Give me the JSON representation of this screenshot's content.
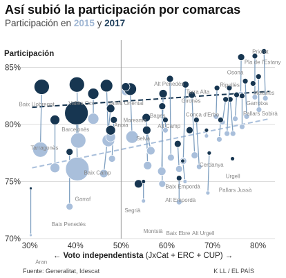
{
  "header": {
    "title": "Así subió la participación por comarcas",
    "subtitle_prefix": "Participación en",
    "year_a": "2015",
    "year_join": "y",
    "year_b": "2017"
  },
  "axis_y_title": "Participación",
  "axis_x_title": {
    "bold": "Voto independentista",
    "rest": "(JxCat + ERC + CUP)",
    "arrow_left": "←",
    "arrow_right": "→"
  },
  "footer": {
    "source": "Fuente: Generalitat, Idescat",
    "credit": "K LL / EL PAÍS"
  },
  "colors": {
    "year_2015": "#a9bfdb",
    "year_2017": "#173651",
    "connector": "#7e9fc0",
    "trend_2015": "#a9bfdb",
    "trend_2017": "#173651",
    "grid": "#dddddd",
    "label": "#888888"
  },
  "chart_data": {
    "type": "scatter",
    "x_axis": {
      "min": 28,
      "max": 84,
      "ticks": [
        30,
        40,
        50,
        60,
        70,
        80
      ],
      "unit": "%"
    },
    "y_axis": {
      "min": 70,
      "max": 88,
      "ticks": [
        70,
        75,
        80,
        85
      ],
      "unit": "%"
    },
    "reference_line_x": 50,
    "grid": "horizontal",
    "series_names": [
      "2015",
      "2017"
    ],
    "trendlines": {
      "2015": {
        "from": [
          30.5,
          76.2
        ],
        "to": [
          82.5,
          80.5
        ]
      },
      "2017": {
        "from": [
          30.5,
          81.5
        ],
        "to": [
          82.5,
          82.9
        ]
      }
    },
    "labels": [
      {
        "text": "Priorat",
        "x": 80.5,
        "y": 86.2
      },
      {
        "text": "Pla de l'Estany",
        "x": 81,
        "y": 85.3
      },
      {
        "text": "Osona",
        "x": 75,
        "y": 84.4
      },
      {
        "text": "Moianès",
        "x": 81.3,
        "y": 82.6
      },
      {
        "text": "Ripollès",
        "x": 73.8,
        "y": 83.3
      },
      {
        "text": "Garrotxa",
        "x": 79.8,
        "y": 81.7
      },
      {
        "text": "Pallars Sobirà",
        "x": 80.5,
        "y": 80.8
      },
      {
        "text": "Terra Alta",
        "x": 66.8,
        "y": 82.7
      },
      {
        "text": "Alt Penedès",
        "x": 60.5,
        "y": 83.4
      },
      {
        "text": "Gironès",
        "x": 65.3,
        "y": 81.9
      },
      {
        "text": "Conca d'Erbo",
        "x": 67.8,
        "y": 80.7
      },
      {
        "text": "Bages",
        "x": 58,
        "y": 80.6
      },
      {
        "text": "Alt Camp",
        "x": 60.5,
        "y": 79.7
      },
      {
        "text": "Maresme",
        "x": 53,
        "y": 80.2
      },
      {
        "text": "Anoia",
        "x": 50,
        "y": 79.8
      },
      {
        "text": "Selva",
        "x": 54.8,
        "y": 78.6
      },
      {
        "text": "Baix Llobregat",
        "x": 31.5,
        "y": 81.6
      },
      {
        "text": "Vallès Occ.",
        "x": 41.5,
        "y": 81.7
      },
      {
        "text": "Vallès Oriental",
        "x": 51,
        "y": 81.7
      },
      {
        "text": "Barcelonès",
        "x": 40,
        "y": 79.4
      },
      {
        "text": "Tarragonès",
        "x": 33.2,
        "y": 77.8
      },
      {
        "text": "Cerdanya",
        "x": 69.8,
        "y": 76.3
      },
      {
        "text": "Urgell",
        "x": 74.5,
        "y": 75.3
      },
      {
        "text": "Baix Camp",
        "x": 44.8,
        "y": 75.6
      },
      {
        "text": "Pallars Jussà",
        "x": 75,
        "y": 74.1
      },
      {
        "text": "Baix Empordà",
        "x": 63.5,
        "y": 74.4
      },
      {
        "text": "Garraf",
        "x": 41.6,
        "y": 73.3
      },
      {
        "text": "Alt Empordà",
        "x": 63,
        "y": 73.2
      },
      {
        "text": "Segrià",
        "x": 52.5,
        "y": 72.3
      },
      {
        "text": "Montsià",
        "x": 57,
        "y": 70.5
      },
      {
        "text": "Alt Urgell",
        "x": 68,
        "y": 70.3
      },
      {
        "text": "Baix Ebre",
        "x": 62.5,
        "y": 70.3
      },
      {
        "text": "Baix Penedès",
        "x": 38.5,
        "y": 71.1
      },
      {
        "text": "Aran",
        "x": 32.5,
        "y": 67.8
      }
    ],
    "points": [
      {
        "x15": 32.3,
        "y15": 77.8,
        "x17": 32.6,
        "y17": 83.3,
        "r15": 11,
        "r17": 11
      },
      {
        "x15": 40.6,
        "y15": 78.6,
        "x17": 40.3,
        "y17": 83.5,
        "r15": 11,
        "r17": 11
      },
      {
        "x15": 40.4,
        "y15": 76.1,
        "x17": 40.2,
        "y17": 81.0,
        "r15": 17,
        "r17": 17
      },
      {
        "x15": 47.2,
        "y15": 78.6,
        "x17": 46.8,
        "y17": 83.4,
        "r15": 9,
        "r17": 9
      },
      {
        "x15": 35.5,
        "y15": 76.2,
        "x17": 35.5,
        "y17": 80.4,
        "r15": 7,
        "r17": 7
      },
      {
        "x15": 43.9,
        "y15": 80.5,
        "x17": 43.9,
        "y17": 82.7,
        "r15": 8,
        "r17": 8
      },
      {
        "x15": 46.2,
        "y15": 75.7,
        "x17": 47.7,
        "y17": 81.4,
        "r15": 6,
        "r17": 6
      },
      {
        "x15": 47.7,
        "y15": 78.9,
        "x17": 47.7,
        "y17": 79.5,
        "r15": 7,
        "r17": 7
      },
      {
        "x15": 52.4,
        "y15": 78.9,
        "x17": 52.0,
        "y17": 83.1,
        "r15": 9,
        "r17": 9
      },
      {
        "x15": 51.0,
        "y15": 82.9,
        "x17": 51.0,
        "y17": 83.3,
        "r15": 6,
        "r17": 6
      },
      {
        "x15": 38.7,
        "y15": 72.8,
        "x17": 38.7,
        "y17": 77.6,
        "r15": 5,
        "r17": 5
      },
      {
        "x15": 48.0,
        "y15": 77.0,
        "x17": 48.4,
        "y17": 80.4,
        "r15": 5,
        "r17": 5
      },
      {
        "x15": 55.8,
        "y15": 76.4,
        "x17": 55.5,
        "y17": 80.6,
        "r15": 6,
        "r17": 6
      },
      {
        "x15": 56.5,
        "y15": 77.7,
        "x17": 55.6,
        "y17": 79.5,
        "r15": 6,
        "r17": 6
      },
      {
        "x15": 53.8,
        "y15": 74.8,
        "x17": 53.8,
        "y17": 74.8,
        "r15": 6,
        "r17": 6
      },
      {
        "x15": 58.9,
        "y15": 75.9,
        "x17": 59.2,
        "y17": 82.7,
        "r15": 6,
        "r17": 6
      },
      {
        "x15": 60.9,
        "y15": 77.1,
        "x17": 60.7,
        "y17": 84.0,
        "r15": 5,
        "r17": 5
      },
      {
        "x15": 59.0,
        "y15": 74.8,
        "x17": 59.0,
        "y17": 81.6,
        "r15": 5,
        "r17": 5
      },
      {
        "x15": 63.6,
        "y15": 76.8,
        "x17": 64.1,
        "y17": 83.5,
        "r15": 5,
        "r17": 5
      },
      {
        "x15": 66.1,
        "y15": 77.3,
        "x17": 65.5,
        "y17": 82.6,
        "r15": 5,
        "r17": 5
      },
      {
        "x15": 65.0,
        "y15": 79.5,
        "x17": 65.0,
        "y17": 79.5,
        "r15": 5,
        "r17": 5
      },
      {
        "x15": 62.7,
        "y15": 76.1,
        "x17": 62.4,
        "y17": 78.3,
        "r15": 5,
        "r17": 5
      },
      {
        "x15": 62.7,
        "y15": 73.2,
        "x17": 62.7,
        "y17": 75.3,
        "r15": 4,
        "r17": 4
      },
      {
        "x15": 59.7,
        "y15": 79.5,
        "x17": 59.7,
        "y17": 80.4,
        "r15": 4,
        "r17": 4
      },
      {
        "x15": 67.1,
        "y15": 76.3,
        "x17": 66.5,
        "y17": 80.4,
        "r15": 4,
        "r17": 4
      },
      {
        "x15": 70.8,
        "y15": 80.7,
        "x17": 71.0,
        "y17": 83.2,
        "r15": 4,
        "r17": 4
      },
      {
        "x15": 73.2,
        "y15": 79.2,
        "x17": 73.7,
        "y17": 83.2,
        "r15": 4,
        "r17": 4
      },
      {
        "x15": 74.5,
        "y15": 79.2,
        "x17": 73.9,
        "y17": 82.2,
        "r15": 4,
        "r17": 4
      },
      {
        "x15": 72.2,
        "y15": 80.2,
        "x17": 72.9,
        "y17": 82.2,
        "r15": 4,
        "r17": 4
      },
      {
        "x15": 75.0,
        "y15": 80.5,
        "x17": 75.3,
        "y17": 82.6,
        "r15": 4,
        "r17": 4
      },
      {
        "x15": 76.2,
        "y15": 82.6,
        "x17": 76.3,
        "y17": 85.9,
        "r15": 5,
        "r17": 5
      },
      {
        "x15": 77.5,
        "y15": 80.7,
        "x17": 77.2,
        "y17": 83.8,
        "r15": 4,
        "r17": 4
      },
      {
        "x15": 78.9,
        "y15": 83.6,
        "x17": 78.9,
        "y17": 83.6,
        "r15": 4,
        "r17": 4
      },
      {
        "x15": 80.2,
        "y15": 81.3,
        "x17": 80.1,
        "y17": 84.2,
        "r15": 4,
        "r17": 4
      },
      {
        "x15": 81.6,
        "y15": 82.3,
        "x17": 81.3,
        "y17": 86.4,
        "r15": 4,
        "r17": 4
      },
      {
        "x15": 79.3,
        "y15": 82.4,
        "x17": 79.3,
        "y17": 86.0,
        "r15": 4,
        "r17": 4
      },
      {
        "x15": 76.5,
        "y15": 79.8,
        "x17": 76.5,
        "y17": 82.5,
        "r15": 4,
        "r17": 4
      },
      {
        "x15": 71.5,
        "y15": 78.7,
        "x17": 71.8,
        "y17": 80.4,
        "r15": 4,
        "r17": 4
      },
      {
        "x15": 30.2,
        "y15": 70.3,
        "x17": 30.2,
        "y17": 74.4,
        "r15": 2,
        "r17": 2
      },
      {
        "x15": 68.7,
        "y15": 79.0,
        "x17": 68.7,
        "y17": 79.5,
        "r15": 3,
        "r17": 3
      },
      {
        "x15": 74.4,
        "y15": 77.0,
        "x17": 74.4,
        "y17": 77.0,
        "r15": 3,
        "r17": 3
      },
      {
        "x15": 69.0,
        "y15": 74.0,
        "x17": 69.3,
        "y17": 77.5,
        "r15": 3,
        "r17": 3
      },
      {
        "x15": 54.9,
        "y15": 73.3,
        "x17": 54.9,
        "y17": 75.0,
        "r15": 3,
        "r17": 3
      },
      {
        "x15": 64.0,
        "y15": 75.0,
        "x17": 63.5,
        "y17": 76.8,
        "r15": 3,
        "r17": 3
      }
    ]
  }
}
